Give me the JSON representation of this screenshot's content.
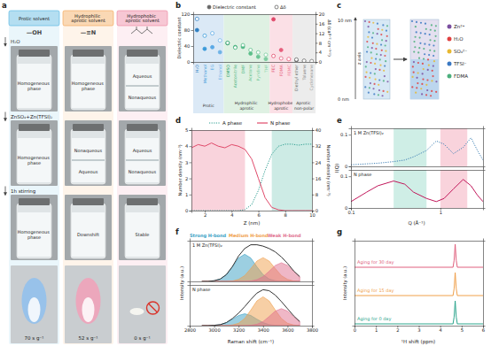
{
  "panel_labels": [
    "a",
    "b",
    "c",
    "d",
    "e",
    "f",
    "g"
  ],
  "panel_a": {
    "columns": [
      {
        "title": "Protic solvent",
        "icon": "—OH",
        "color": "#4fb3e0"
      },
      {
        "title": "Hydrophilic aprotic solvent",
        "icon": "—≡N",
        "color": "#f4a24f"
      },
      {
        "title": "Hydrophobic aprotic solvent",
        "color": "#ec7f9c"
      }
    ],
    "steps": [
      "H₂O",
      "ZnSO₄+Zn(TFSI)₂",
      "1h stirring"
    ],
    "vials": [
      [
        [
          "Homogeneous phase"
        ],
        [
          "Homogeneous phase"
        ],
        [
          "Aqueous",
          "Nonaqueous"
        ]
      ],
      [
        [
          "Homogeneous phase"
        ],
        [
          "Nonaqueous",
          "Aqueous"
        ],
        [
          "Aqueous",
          "Nonaqueous"
        ]
      ],
      [
        [
          "Homogeneous phase"
        ],
        [
          "Downshift"
        ],
        [
          "Stable"
        ]
      ]
    ],
    "burn_time": [
      "70 s g⁻¹",
      "52 s g⁻¹",
      "0 s g⁻¹"
    ]
  },
  "panel_c": {
    "axis_label": "z axis",
    "z_top": "10 nm",
    "z_bottom": "0 nm",
    "legend": [
      {
        "label": "Zn²⁺",
        "color": "#7b4fa0"
      },
      {
        "label": "H₂O",
        "color": "#e04040"
      },
      {
        "label": "SO₄²⁻",
        "color": "#e8b830"
      },
      {
        "label": "TFSI⁻",
        "color": "#3a78c2"
      },
      {
        "label": "FDMA",
        "color": "#4caf7d"
      }
    ]
  },
  "chart_data": [
    {
      "type": "scatter",
      "ylabel": "Dielectric constant",
      "y2label": "Δδ (cal¹ᐟ² cm⁻³ᐟ²)",
      "categories": [
        "H₂O",
        "Methanol",
        "EG",
        "Ethanol",
        "DMSO",
        "Acetonitrile",
        "DMF",
        "Acetone",
        "Pyridine",
        "THF",
        "FEC",
        "FDMA",
        "FEMC",
        "Diethyl ether",
        "Toluene",
        "Cyclohexane"
      ],
      "groups": [
        {
          "name": "Protic",
          "members": [
            "H₂O",
            "Methanol",
            "EG",
            "Ethanol"
          ],
          "color": "#dbe9f6"
        },
        {
          "name": "Hydrophilic aprotic",
          "members": [
            "DMSO",
            "Acetonitrile",
            "DMF",
            "Acetone",
            "Pyridine",
            "THF"
          ],
          "color": "#dff1e3"
        },
        {
          "name": "Hydrophobe aprotic",
          "members": [
            "FEC",
            "FDMA",
            "FEMC"
          ],
          "color": "#fbe0e6"
        },
        {
          "name": "Aprotic non-polar",
          "members": [
            "Diethyl ether",
            "Toluene",
            "Cyclohexane"
          ],
          "color": "#ececec"
        }
      ],
      "ylim": [
        0,
        120
      ],
      "yticks": [
        0,
        40,
        80,
        120
      ],
      "y2lim": [
        0,
        20
      ],
      "y2ticks": [
        0,
        4,
        8,
        12,
        16,
        20
      ],
      "series": [
        {
          "name": "Dielectric constant",
          "marker": "circle",
          "colors": [
            "#2f7fc1",
            "#3b9ad9",
            "#5aa9e6",
            "#6fb3e6",
            "#2e9e6b",
            "#43b07a",
            "#4fb884",
            "#5cbf8a",
            "#6cc595",
            "#7fcda1",
            "#e0486a",
            "#e65f7c",
            "#ec7a92",
            "#6b6b6b",
            "#808080",
            "#959595"
          ],
          "values": [
            80,
            33,
            37,
            24.5,
            47,
            37.5,
            38,
            21,
            13,
            7.5,
            107,
            30,
            7,
            4.3,
            2.4,
            2
          ]
        },
        {
          "name": "Δδ",
          "marker": "open-circle",
          "axis": "y2",
          "colors": [
            "#2f7fc1",
            "#3b9ad9",
            "#5aa9e6",
            "#6fb3e6",
            "#2e9e6b",
            "#43b07a",
            "#4fb884",
            "#5cbf8a",
            "#6cc595",
            "#7fcda1",
            "#e0486a",
            "#e65f7c",
            "#ec7a92",
            "#6b6b6b",
            "#808080",
            "#959595"
          ],
          "values": [
            18,
            11,
            12,
            9,
            8,
            6,
            7,
            5,
            4,
            3,
            2.5,
            1.5,
            1.2,
            1,
            0.5,
            0.3
          ]
        }
      ]
    },
    {
      "type": "line",
      "xlabel": "Z (nm)",
      "ylabel": "Number density (nm⁻³)",
      "y2label": "Number density (nm⁻³)",
      "x": [
        1,
        1.5,
        2,
        2.5,
        3,
        3.5,
        4,
        4.5,
        5,
        5.5,
        6,
        6.5,
        7,
        7.5,
        8,
        8.5,
        9,
        9.5,
        10
      ],
      "xlim": [
        1,
        10
      ],
      "xticks": [
        2,
        4,
        6,
        8,
        10
      ],
      "ylim": [
        0,
        5
      ],
      "yticks": [
        0,
        1,
        2,
        3,
        4,
        5
      ],
      "y2lim": [
        0,
        40
      ],
      "y2ticks": [
        0,
        8,
        16,
        24,
        32,
        40
      ],
      "legend": "top",
      "regions": [
        {
          "x": [
            1,
            5
          ],
          "color": "#f9d3dc"
        },
        {
          "x": [
            7,
            10
          ],
          "color": "#cdebe5"
        }
      ],
      "series": [
        {
          "name": "A phase",
          "color": "#2a9d8f",
          "line_style": "dotted",
          "axis": "y2",
          "values": [
            0,
            0,
            0,
            0,
            0,
            0,
            0,
            0,
            0.5,
            3,
            10,
            20,
            28,
            32,
            33,
            33,
            32.5,
            33,
            33
          ]
        },
        {
          "name": "N phase",
          "color": "#e04a6a",
          "line_style": "solid",
          "values": [
            3.9,
            4.1,
            4.0,
            4.2,
            4.0,
            3.9,
            4.1,
            4.0,
            3.8,
            3.2,
            2.0,
            0.8,
            0.2,
            0.05,
            0,
            0,
            0,
            0,
            0
          ]
        }
      ]
    },
    {
      "type": "line",
      "title": "1 M Zn(TFSI)₂",
      "ylabel": "I(Q)",
      "log": "x",
      "x": [
        0.1,
        0.15,
        0.2,
        0.3,
        0.4,
        0.5,
        0.7,
        0.9,
        1.1,
        1.4,
        1.8,
        2.2,
        2.6,
        3
      ],
      "xlim": [
        0.1,
        3
      ],
      "ylim": [
        0,
        0.12
      ],
      "yticks": [
        0,
        0.1
      ],
      "tick_labels": "y",
      "regions": [
        {
          "x": [
            0.3,
            0.7
          ],
          "color": "#cfeee6"
        },
        {
          "x": [
            1,
            2
          ],
          "color": "#f9d3dc"
        }
      ],
      "series": [
        {
          "color": "#3d7fb5",
          "line_style": "dotted",
          "values": [
            0.005,
            0.008,
            0.01,
            0.015,
            0.02,
            0.03,
            0.05,
            0.08,
            0.07,
            0.04,
            0.06,
            0.09,
            0.05,
            0.02
          ]
        }
      ]
    },
    {
      "type": "line",
      "title": "N phase",
      "xlabel": "Q (Å⁻¹)",
      "log": "x",
      "x": [
        0.1,
        0.15,
        0.2,
        0.3,
        0.4,
        0.5,
        0.7,
        0.9,
        1.1,
        1.4,
        1.8,
        2.2,
        2.6,
        3
      ],
      "xlim": [
        0.1,
        3
      ],
      "xticks": [
        0.1,
        1
      ],
      "ylim": [
        0,
        0.12
      ],
      "yticks": [
        0,
        0.1
      ],
      "regions": [
        {
          "x": [
            0.3,
            0.7
          ],
          "color": "#cfeee6"
        },
        {
          "x": [
            1,
            2
          ],
          "color": "#f9d3dc"
        }
      ],
      "series": [
        {
          "color": "#c2185b",
          "line_style": "solid",
          "values": [
            0.02,
            0.05,
            0.07,
            0.085,
            0.075,
            0.05,
            0.03,
            0.02,
            0.03,
            0.06,
            0.09,
            0.07,
            0.04,
            0.02
          ]
        }
      ]
    },
    {
      "type": "area",
      "title": "1 M Zn(TFSI)₂",
      "ylabel": "Intensity (a.u.)",
      "x": [
        2900,
        2950,
        3000,
        3050,
        3100,
        3150,
        3200,
        3250,
        3300,
        3350,
        3400,
        3450,
        3500,
        3550,
        3600,
        3650,
        3700
      ],
      "xlim": [
        2800,
        3800
      ],
      "ylim": [
        0,
        1.2
      ],
      "tick_labels": false,
      "series": [
        {
          "name": "Strong H-bond",
          "color": "#3a9fc4",
          "values": [
            0,
            0,
            0.02,
            0.07,
            0.2,
            0.43,
            0.69,
            0.8,
            0.69,
            0.43,
            0.2,
            0.07,
            0.02,
            0,
            0,
            0,
            0
          ]
        },
        {
          "name": "Medium H-bond",
          "color": "#f0a04b",
          "values": [
            0,
            0,
            0,
            0,
            0,
            0.01,
            0.06,
            0.17,
            0.38,
            0.6,
            0.7,
            0.6,
            0.38,
            0.17,
            0.06,
            0.01,
            0
          ]
        },
        {
          "name": "Weak H-bond",
          "color": "#e06f8e",
          "values": [
            0,
            0,
            0,
            0,
            0,
            0,
            0,
            0,
            0.01,
            0.05,
            0.14,
            0.3,
            0.47,
            0.55,
            0.47,
            0.3,
            0.14
          ]
        },
        {
          "type": "line",
          "color": "#333333",
          "line_style": "solid",
          "values": [
            0,
            0,
            0.02,
            0.07,
            0.2,
            0.44,
            0.75,
            0.97,
            1.08,
            1.08,
            1.04,
            0.97,
            0.87,
            0.72,
            0.53,
            0.31,
            0.14
          ]
        }
      ]
    },
    {
      "type": "area",
      "title": "N phase",
      "xlabel": "Raman shift (cm⁻¹)",
      "x": [
        2900,
        2950,
        3000,
        3050,
        3100,
        3150,
        3200,
        3250,
        3300,
        3350,
        3400,
        3450,
        3500,
        3550,
        3600,
        3650,
        3700
      ],
      "xlim": [
        2800,
        3800
      ],
      "xticks": [
        2800,
        3000,
        3200,
        3400,
        3600,
        3800
      ],
      "ylim": [
        0,
        1.2
      ],
      "tick_labels": "x",
      "series": [
        {
          "color": "#3a9fc4",
          "values": [
            0,
            0,
            0.01,
            0.03,
            0.09,
            0.19,
            0.3,
            0.35,
            0.3,
            0.19,
            0.09,
            0.03,
            0.01,
            0,
            0,
            0,
            0
          ]
        },
        {
          "color": "#f0a04b",
          "values": [
            0,
            0,
            0,
            0,
            0,
            0.02,
            0.07,
            0.21,
            0.46,
            0.73,
            0.85,
            0.73,
            0.46,
            0.21,
            0.07,
            0.02,
            0
          ]
        },
        {
          "color": "#e06f8e",
          "values": [
            0,
            0,
            0,
            0,
            0,
            0,
            0,
            0,
            0.01,
            0.04,
            0.12,
            0.27,
            0.43,
            0.5,
            0.43,
            0.27,
            0.12
          ]
        },
        {
          "type": "line",
          "color": "#333333",
          "line_style": "solid",
          "values": [
            0,
            0,
            0.01,
            0.03,
            0.09,
            0.21,
            0.37,
            0.56,
            0.77,
            0.96,
            1.06,
            1.03,
            0.9,
            0.71,
            0.5,
            0.29,
            0.12
          ]
        }
      ]
    },
    {
      "type": "line",
      "xlabel": "¹H shift (ppm)",
      "ylabel": "Intensity (a.u.)",
      "x": [
        0,
        4.6,
        4.65,
        4.7,
        4.75,
        4.8,
        6
      ],
      "xlim": [
        0,
        6
      ],
      "xticks": [
        0,
        1,
        2,
        3,
        4,
        5,
        6
      ],
      "ylim": [
        0,
        1
      ],
      "tick_labels": "x",
      "series": [
        {
          "name": "Aging for 30 day",
          "color": "#e0607e",
          "line_style": "solid",
          "values": [
            0,
            0,
            0.3,
            1,
            0.3,
            0,
            0
          ]
        },
        {
          "name": "Aging for 15 day",
          "color": "#f0a04b",
          "line_style": "solid",
          "values": [
            0,
            0,
            0.3,
            1,
            0.3,
            0,
            0
          ]
        },
        {
          "name": "Aging for 0 day",
          "color": "#2ca58d",
          "line_style": "solid",
          "values": [
            0,
            0,
            0.3,
            1,
            0.3,
            0,
            0
          ]
        }
      ]
    }
  ]
}
